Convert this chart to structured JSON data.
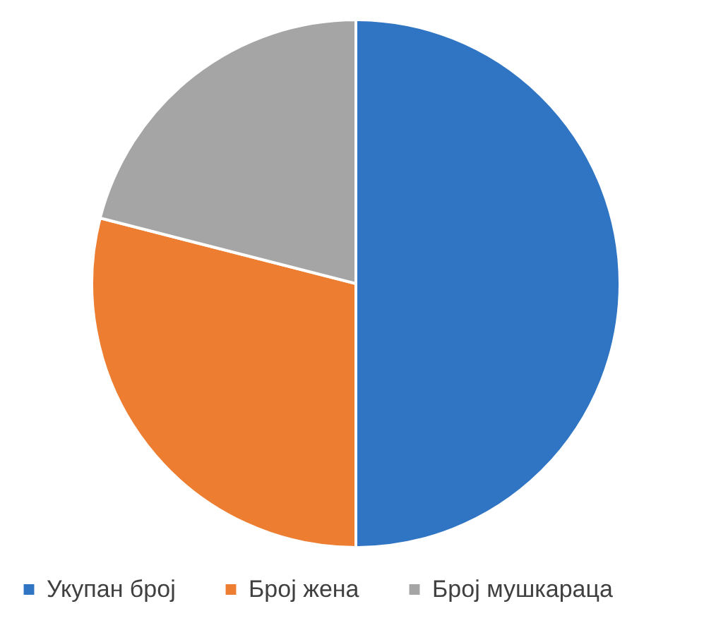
{
  "chart_data": {
    "type": "pie",
    "categories": [
      "Укупан број",
      "Број жена",
      "Број мушкараца"
    ],
    "values": [
      50,
      29,
      21
    ],
    "colors": [
      "#2f75c4",
      "#ed7d31",
      "#a5a5a5"
    ],
    "legend": "bottom"
  }
}
